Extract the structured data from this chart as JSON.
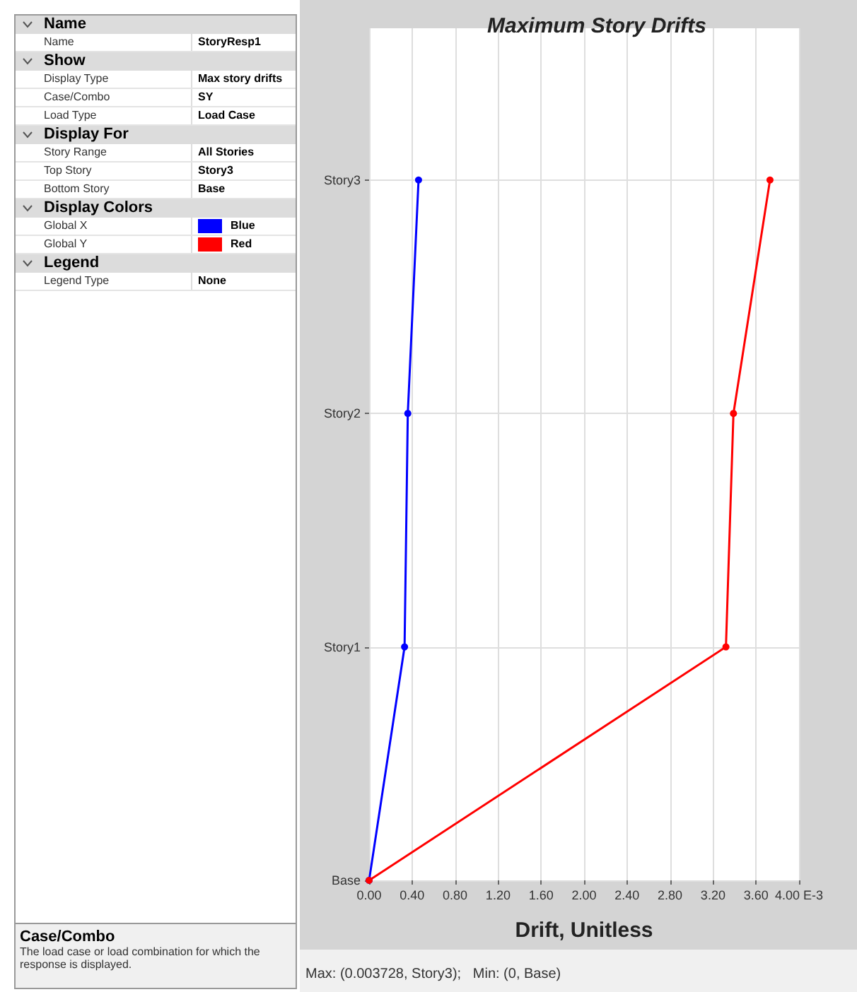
{
  "chart_data": [
    {
      "type": "other",
      "categories": [
        "Name",
        "Name",
        "Show",
        "Display Type",
        "Case/Combo",
        "Load Type",
        "Display For",
        "Story Range",
        "Top Story",
        "Bottom Story",
        "Display Colors",
        "Global X",
        "Global Y",
        "Legend",
        "Legend Type"
      ],
      "cell_labels": [
        null,
        "StoryResp1",
        null,
        "Max story drifts",
        "SY",
        "Load Case",
        null,
        "All Stories",
        "Story3",
        "Base",
        null,
        "Blue",
        "Red",
        null,
        "None"
      ],
      "colors": [
        null,
        null,
        null,
        null,
        null,
        null,
        null,
        null,
        null,
        null,
        null,
        "#0000ff",
        "#ff0000",
        null,
        null
      ],
      "subtitle": "Case/Combo",
      "annotations": [
        "The load case or load combination for which the response is displayed."
      ]
    },
    {
      "type": "line",
      "orientation": "horizontal",
      "title": "Maximum Story Drifts",
      "xlabel": "Drift, Unitless",
      "categories": [
        "Story3",
        "Story2",
        "Story1",
        "Base"
      ],
      "series": [
        {
          "color": "#0000ff",
          "values": [
            0.46,
            0.36,
            0.33,
            0
          ]
        },
        {
          "color": "#ff0000",
          "values": [
            3.73,
            3.39,
            3.32,
            0
          ]
        }
      ],
      "xlim": [
        0,
        4
      ],
      "xticks": [
        {
          "value": 0,
          "label": "0.00"
        },
        {
          "value": 0.4,
          "label": "0.40"
        },
        {
          "value": 0.8,
          "label": "0.80"
        },
        {
          "value": 1.2,
          "label": "1.20"
        },
        {
          "value": 1.6,
          "label": "1.60"
        },
        {
          "value": 2,
          "label": "2.00"
        },
        {
          "value": 2.4,
          "label": "2.40"
        },
        {
          "value": 2.8,
          "label": "2.80"
        },
        {
          "value": 3.2,
          "label": "3.20"
        },
        {
          "value": 3.6,
          "label": "3.60"
        },
        {
          "value": 4,
          "label": "4.00 E-3"
        }
      ],
      "grid": true,
      "marker": "circle",
      "line_style": "solid",
      "annotations": [
        "Max: (0.003728, Story3);   Min: (0, Base)"
      ]
    }
  ]
}
